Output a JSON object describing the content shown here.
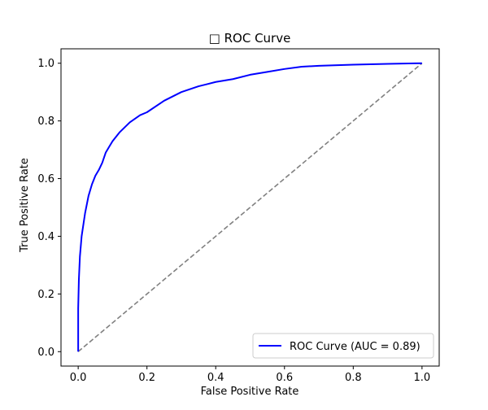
{
  "chart_data": {
    "type": "line",
    "title": "□ ROC Curve",
    "xlabel": "False Positive Rate",
    "ylabel": "True Positive Rate",
    "xlim": [
      -0.05,
      1.05
    ],
    "ylim": [
      -0.05,
      1.05
    ],
    "x_ticks": [
      0.0,
      0.2,
      0.4,
      0.6,
      0.8,
      1.0
    ],
    "x_tick_labels": [
      "0.0",
      "0.2",
      "0.4",
      "0.6",
      "0.8",
      "1.0"
    ],
    "y_ticks": [
      0.0,
      0.2,
      0.4,
      0.6,
      0.8,
      1.0
    ],
    "y_tick_labels": [
      "0.0",
      "0.2",
      "0.4",
      "0.6",
      "0.8",
      "1.0"
    ],
    "grid": false,
    "legend_position": "lower-right",
    "series": [
      {
        "name": "ROC Curve (AUC = 0.89)",
        "color": "#0000ff",
        "style": "solid",
        "x": [
          0.0,
          0.0,
          0.002,
          0.005,
          0.01,
          0.015,
          0.02,
          0.03,
          0.04,
          0.05,
          0.06,
          0.07,
          0.08,
          0.09,
          0.1,
          0.12,
          0.15,
          0.18,
          0.2,
          0.25,
          0.3,
          0.35,
          0.4,
          0.45,
          0.5,
          0.55,
          0.6,
          0.65,
          0.7,
          0.8,
          0.9,
          1.0
        ],
        "y": [
          0.0,
          0.15,
          0.25,
          0.33,
          0.4,
          0.44,
          0.48,
          0.54,
          0.58,
          0.61,
          0.63,
          0.655,
          0.69,
          0.71,
          0.73,
          0.76,
          0.795,
          0.82,
          0.83,
          0.87,
          0.9,
          0.92,
          0.935,
          0.945,
          0.96,
          0.97,
          0.98,
          0.988,
          0.991,
          0.995,
          0.998,
          1.0
        ]
      },
      {
        "name": "",
        "color": "#808080",
        "style": "dashed",
        "x": [
          0.0,
          1.0
        ],
        "y": [
          0.0,
          1.0
        ]
      }
    ]
  }
}
